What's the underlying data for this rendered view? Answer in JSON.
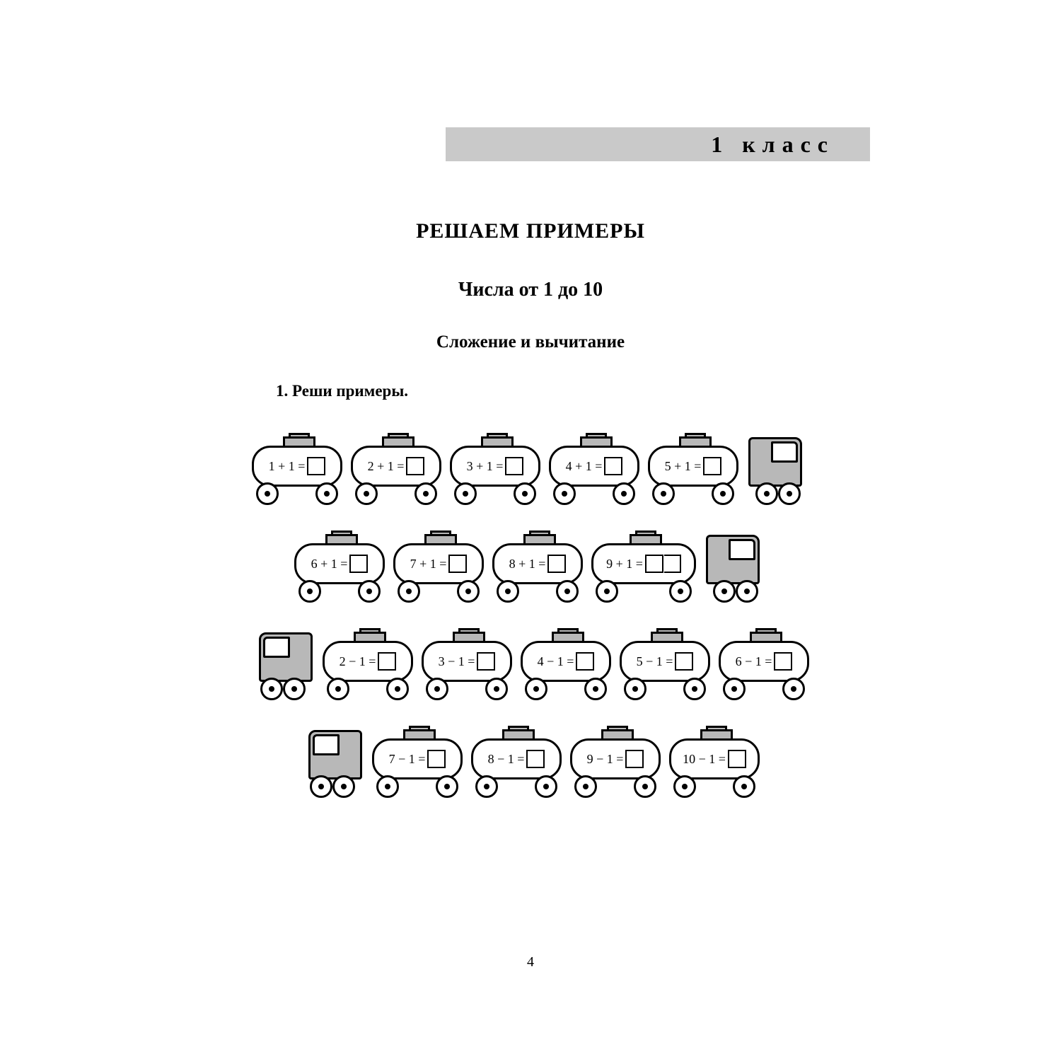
{
  "grade_label": "1 класс",
  "title_main": "РЕШАЕМ ПРИМЕРЫ",
  "title_sub": "Числа от 1 до 10",
  "title_section": "Сложение и вычитание",
  "task_number": "1.",
  "task_text": "Реши примеры.",
  "page_number": "4",
  "colors": {
    "bar_bg": "#c9c9c9",
    "fill_gray": "#b8b8b8",
    "line": "#000000",
    "page_bg": "#ffffff"
  },
  "typography": {
    "grade_fontsize_pt": 24,
    "title_main_pt": 22,
    "title_sub_pt": 20,
    "title_section_pt": 18,
    "task_pt": 17,
    "expr_pt": 14
  },
  "rows": [
    {
      "cab": "right",
      "wagons": [
        {
          "expr": "1 + 1 ="
        },
        {
          "expr": "2 + 1 ="
        },
        {
          "expr": "3 + 1 ="
        },
        {
          "expr": "4 + 1 ="
        },
        {
          "expr": "5 + 1 ="
        }
      ]
    },
    {
      "cab": "right",
      "wagons": [
        {
          "expr": "6 + 1 ="
        },
        {
          "expr": "7 + 1 ="
        },
        {
          "expr": "8 + 1 ="
        },
        {
          "expr": "9 + 1 =",
          "wide": true
        }
      ]
    },
    {
      "cab": "left",
      "wagons": [
        {
          "expr": "2 − 1 ="
        },
        {
          "expr": "3 − 1 ="
        },
        {
          "expr": "4 − 1 ="
        },
        {
          "expr": "5 − 1 ="
        },
        {
          "expr": "6 − 1 ="
        }
      ]
    },
    {
      "cab": "left",
      "wagons": [
        {
          "expr": "7 − 1 ="
        },
        {
          "expr": "8 − 1 ="
        },
        {
          "expr": "9 − 1 ="
        },
        {
          "expr": "10 − 1 ="
        }
      ]
    }
  ]
}
